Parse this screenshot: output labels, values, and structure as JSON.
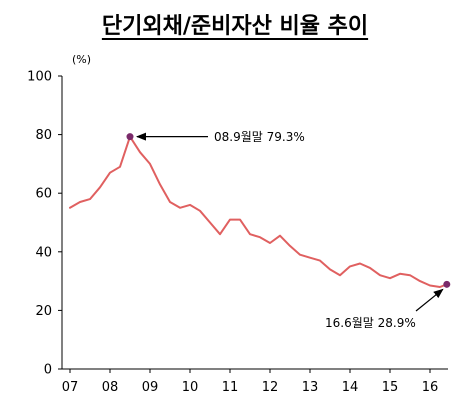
{
  "chart_data": {
    "type": "line",
    "title": "단기외채/준비자산 비율 추이",
    "ylabel": "(%)",
    "xlabel": "",
    "ylim": [
      0,
      100
    ],
    "yticks": [
      0,
      20,
      40,
      60,
      80,
      100
    ],
    "xlim": [
      7,
      16.3
    ],
    "xticks": [
      7,
      8,
      9,
      10,
      11,
      12,
      13,
      14,
      15,
      16
    ],
    "xtick_labels": [
      "07",
      "08",
      "09",
      "10",
      "11",
      "12",
      "13",
      "14",
      "15",
      "16"
    ],
    "grid": false,
    "series": [
      {
        "color": "#e06060",
        "x": [
          7.0,
          7.25,
          7.5,
          7.75,
          8.0,
          8.25,
          8.5,
          8.75,
          9.0,
          9.25,
          9.5,
          9.75,
          10.0,
          10.25,
          10.5,
          10.75,
          11.0,
          11.25,
          11.5,
          11.75,
          12.0,
          12.25,
          12.5,
          12.75,
          13.0,
          13.25,
          13.5,
          13.75,
          14.0,
          14.25,
          14.5,
          14.75,
          15.0,
          15.25,
          15.5,
          15.75,
          16.0,
          16.25,
          16.42
        ],
        "values": [
          55,
          57,
          58,
          62,
          67,
          69,
          79.3,
          74,
          70,
          63,
          57,
          55,
          56,
          54,
          50,
          46,
          51,
          51,
          46,
          45,
          43,
          45.5,
          42,
          39,
          38,
          37,
          34,
          32,
          35,
          36,
          34.5,
          32,
          31,
          32.5,
          32,
          30,
          28.5,
          28,
          28.9
        ]
      }
    ],
    "markers": [
      {
        "x": 8.5,
        "value": 79.3,
        "color": "#7a2a6a"
      },
      {
        "x": 16.42,
        "value": 28.9,
        "color": "#7a2a6a"
      }
    ],
    "annotations": [
      {
        "text": "08.9월말  79.3%"
      },
      {
        "text": "16.6월말  28.9%"
      }
    ]
  }
}
